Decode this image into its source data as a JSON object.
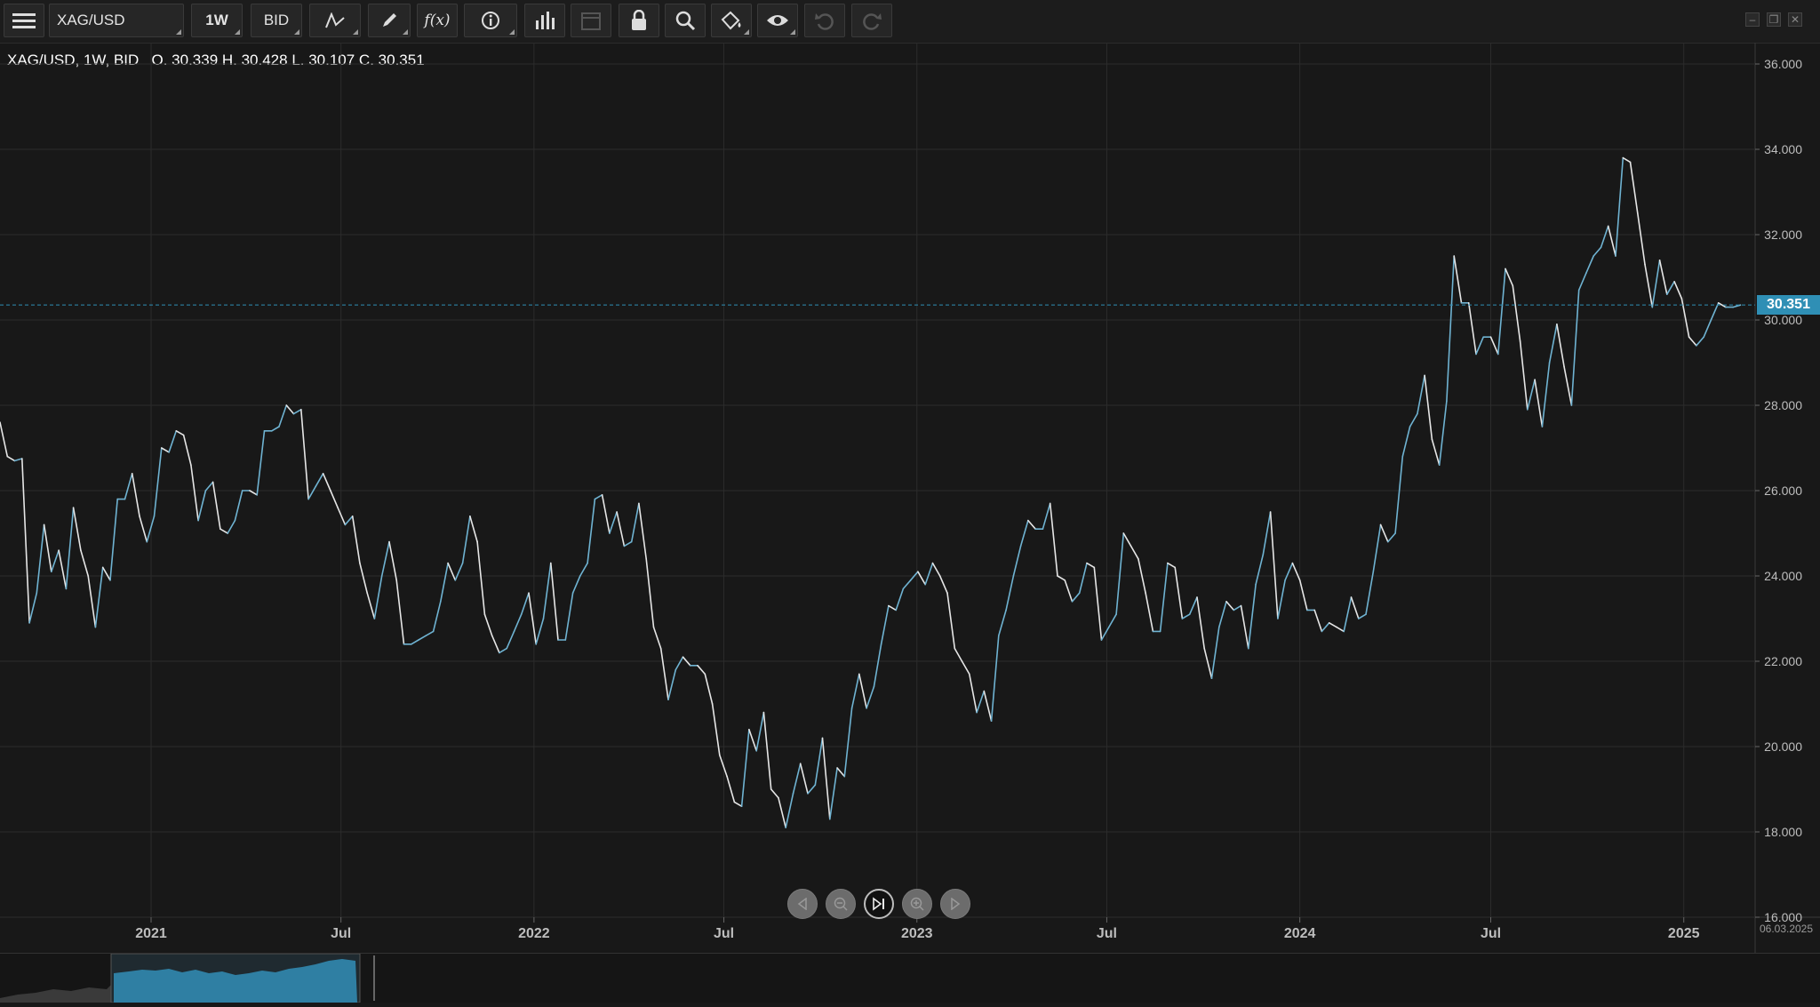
{
  "toolbar": {
    "symbol": "XAG/USD",
    "timeframe": "1W",
    "price_type": "BID",
    "icons": [
      "menu-icon",
      "line-chart-icon",
      "pencil-icon",
      "function-icon",
      "info-icon",
      "bar-chart-icon",
      "calendar-icon",
      "lock-icon",
      "zoom-icon",
      "paint-bucket-icon",
      "eye-icon",
      "undo-icon",
      "redo-icon"
    ]
  },
  "legend": {
    "instrument": "XAG/USD, 1W, BID",
    "ohlc": "O. 30.339 H. 30.428 L. 30.107 C. 30.351"
  },
  "colors": {
    "line_up": "#6fb3d2",
    "line_down": "#e6e6e6",
    "accent": "#2f8fb5",
    "background": "#181818"
  },
  "chart_data": {
    "type": "line",
    "title": "",
    "xlabel": "",
    "ylabel": "",
    "x_ticks": [
      "2021",
      "Jul",
      "2022",
      "Jul",
      "2023",
      "Jul",
      "2024",
      "Jul",
      "2025"
    ],
    "y_ticks": [
      "36.000",
      "34.000",
      "32.000",
      "30.000",
      "28.000",
      "26.000",
      "24.000",
      "22.000",
      "20.000",
      "18.000",
      "16.000"
    ],
    "ylim": [
      16,
      36.5
    ],
    "last_price": "30.351",
    "last_date": "06.03.2025",
    "x_start": "2020-08-10",
    "x_end": "2025-03-10",
    "series": [
      {
        "values": [
          27.6,
          26.8,
          26.7,
          26.75,
          22.9,
          23.6,
          25.2,
          24.1,
          24.6,
          23.7,
          25.6,
          24.6,
          24.0,
          22.8,
          24.2,
          23.9,
          25.8,
          25.8,
          26.4,
          25.4,
          24.8,
          25.4,
          27.0,
          26.9,
          27.4,
          27.3,
          26.6,
          25.3,
          26.0,
          26.2,
          25.1,
          25.0,
          25.3,
          26.0,
          26.0,
          25.9,
          27.4,
          27.4,
          27.5,
          28.0,
          27.8,
          27.9,
          25.8,
          26.1,
          26.4,
          26.0,
          25.6,
          25.2,
          25.4,
          24.3,
          23.6,
          23.0,
          24.0,
          24.8,
          23.9,
          22.4,
          22.4,
          22.5,
          22.6,
          22.7,
          23.4,
          24.3,
          23.9,
          24.3,
          25.4,
          24.8,
          23.1,
          22.6,
          22.2,
          22.3,
          22.7,
          23.1,
          23.6,
          22.4,
          23.0,
          24.3,
          22.5,
          22.5,
          23.6,
          24.0,
          24.3,
          25.8,
          25.9,
          25.0,
          25.5,
          24.7,
          24.8,
          25.7,
          24.4,
          22.8,
          22.3,
          21.1,
          21.8,
          22.1,
          21.9,
          21.9,
          21.7,
          21.0,
          19.8,
          19.3,
          18.7,
          18.6,
          20.4,
          19.9,
          20.8,
          19.0,
          18.8,
          18.1,
          18.9,
          19.6,
          18.9,
          19.1,
          20.2,
          18.3,
          19.5,
          19.3,
          20.9,
          21.7,
          20.9,
          21.4,
          22.4,
          23.3,
          23.2,
          23.7,
          23.9,
          24.1,
          23.8,
          24.3,
          24.0,
          23.6,
          22.3,
          22.0,
          21.7,
          20.8,
          21.3,
          20.6,
          22.6,
          23.2,
          24.0,
          24.7,
          25.3,
          25.1,
          25.1,
          25.7,
          24.0,
          23.9,
          23.4,
          23.6,
          24.3,
          24.2,
          22.5,
          22.8,
          23.1,
          25.0,
          24.7,
          24.4,
          23.6,
          22.7,
          22.7,
          24.3,
          24.2,
          23.0,
          23.1,
          23.5,
          22.3,
          21.6,
          22.8,
          23.4,
          23.2,
          23.3,
          22.3,
          23.8,
          24.5,
          25.5,
          23.0,
          23.9,
          24.3,
          23.9,
          23.2,
          23.2,
          22.7,
          22.9,
          22.8,
          22.7,
          23.5,
          23.0,
          23.1,
          24.1,
          25.2,
          24.8,
          25.0,
          26.8,
          27.5,
          27.8,
          28.7,
          27.2,
          26.6,
          28.1,
          31.5,
          30.4,
          30.4,
          29.2,
          29.6,
          29.6,
          29.2,
          31.2,
          30.8,
          29.5,
          27.9,
          28.6,
          27.5,
          29.0,
          29.9,
          28.9,
          28.0,
          30.7,
          31.1,
          31.5,
          31.7,
          32.2,
          31.5,
          33.8,
          33.7,
          32.5,
          31.3,
          30.3,
          31.4,
          30.6,
          30.9,
          30.5,
          29.6,
          29.4,
          29.6,
          30.0,
          30.4,
          30.3,
          30.3,
          30.35
        ]
      }
    ]
  },
  "navigator": {
    "buttons": [
      "scroll-left-icon",
      "zoom-out-icon",
      "go-to-last-icon",
      "zoom-in-icon",
      "scroll-right-icon"
    ]
  }
}
